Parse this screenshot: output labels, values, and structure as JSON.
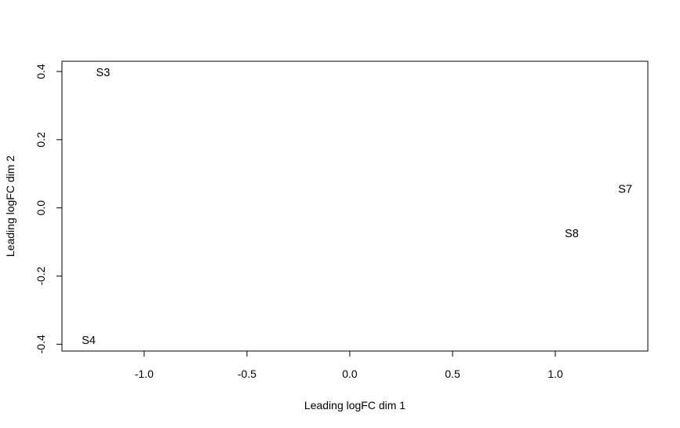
{
  "chart_data": {
    "type": "scatter",
    "xlabel": "Leading logFC dim 1",
    "ylabel": "Leading logFC dim 2",
    "xlim": [
      -1.4,
      1.45
    ],
    "ylim": [
      -0.42,
      0.43
    ],
    "x_ticks": [
      -1.0,
      -0.5,
      0.0,
      0.5,
      1.0
    ],
    "x_tick_labels": [
      "-1.0",
      "-0.5",
      "0.0",
      "0.5",
      "1.0"
    ],
    "y_ticks": [
      -0.4,
      -0.2,
      0.0,
      0.2,
      0.4
    ],
    "y_tick_labels": [
      "-0.4",
      "-0.2",
      "0.0",
      "0.2",
      "0.4"
    ],
    "grid": false,
    "points": [
      {
        "label": "S3",
        "x": -1.2,
        "y": 0.395
      },
      {
        "label": "S4",
        "x": -1.27,
        "y": -0.39
      },
      {
        "label": "S7",
        "x": 1.34,
        "y": 0.053
      },
      {
        "label": "S8",
        "x": 1.08,
        "y": -0.077
      }
    ],
    "marker": "text-label"
  }
}
